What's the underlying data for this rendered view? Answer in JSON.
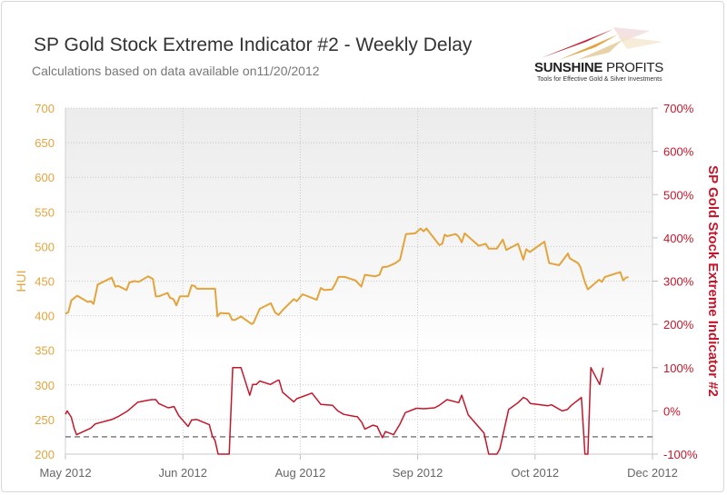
{
  "header": {
    "title": "SP Gold Stock Extreme Indicator #2 - Weekly Delay",
    "subtitle": "Calculations based on data available  on11/20/2012"
  },
  "logo": {
    "name_bold": "SUNSHINE",
    "name_regular": " PROFITS",
    "tagline": "Tools for Effective Gold & Silver Investments"
  },
  "colors": {
    "hui": "#e3a43c",
    "indicator": "#c4162a",
    "threshold": "#555555"
  },
  "chart_data": {
    "type": "line",
    "title": "SP Gold Stock Extreme Indicator #2 - Weekly Delay",
    "x_ticks": [
      {
        "x": 0,
        "label": "May 2012"
      },
      {
        "x": 20,
        "label": "Jun 2012"
      },
      {
        "x": 40,
        "label": "Aug 2012"
      },
      {
        "x": 60,
        "label": "Sep 2012"
      },
      {
        "x": 80,
        "label": "Oct 2012"
      },
      {
        "x": 100,
        "label": "Dec 2012"
      }
    ],
    "xlim": [
      0,
      100
    ],
    "y_left": {
      "label": "HUI",
      "lim": [
        200,
        700
      ],
      "ticks": [
        "200",
        "250",
        "300",
        "350",
        "400",
        "450",
        "500",
        "550",
        "600",
        "650",
        "700"
      ]
    },
    "y_right": {
      "label": "SP Gold Stock Extreme Indicator #2",
      "lim": [
        -100,
        700
      ],
      "ticks": [
        "-100%",
        "0%",
        "100%",
        "200%",
        "300%",
        "400%",
        "500%",
        "600%",
        "700%"
      ]
    },
    "grid": true,
    "threshold": {
      "value": -60,
      "axis": "right",
      "style": "dashed"
    },
    "series": [
      {
        "axis": "left",
        "color": "#e3a43c",
        "points": [
          [
            0,
            403
          ],
          [
            0.5,
            405
          ],
          [
            1,
            422
          ],
          [
            2,
            429
          ],
          [
            3.8,
            420
          ],
          [
            4.3,
            421
          ],
          [
            4.8,
            417
          ],
          [
            5.5,
            445
          ],
          [
            7.9,
            455
          ],
          [
            8.5,
            442
          ],
          [
            9,
            443
          ],
          [
            10.4,
            437
          ],
          [
            10.9,
            448
          ],
          [
            11.8,
            450
          ],
          [
            12.5,
            449
          ],
          [
            14.1,
            457
          ],
          [
            14.9,
            453
          ],
          [
            15.4,
            428
          ],
          [
            15.9,
            428
          ],
          [
            17.4,
            433
          ],
          [
            17.8,
            426
          ],
          [
            18.4,
            424
          ],
          [
            18.9,
            415
          ],
          [
            19.5,
            428
          ],
          [
            20.9,
            428
          ],
          [
            21.5,
            444
          ],
          [
            22,
            443
          ],
          [
            22.4,
            439
          ],
          [
            25.5,
            439
          ],
          [
            25.9,
            399
          ],
          [
            26.4,
            404
          ],
          [
            27.9,
            403
          ],
          [
            28.4,
            394
          ],
          [
            28.9,
            394
          ],
          [
            29.9,
            399
          ],
          [
            31.7,
            388
          ],
          [
            32,
            389
          ],
          [
            33.1,
            410
          ],
          [
            35,
            418
          ],
          [
            35.7,
            405
          ],
          [
            36.3,
            401
          ],
          [
            37,
            408
          ],
          [
            38.9,
            424
          ],
          [
            39.4,
            421
          ],
          [
            40.4,
            431
          ],
          [
            42.8,
            423
          ],
          [
            43.5,
            440
          ],
          [
            44.1,
            437
          ],
          [
            45.4,
            438
          ],
          [
            45.9,
            445
          ],
          [
            46.5,
            456
          ],
          [
            47.6,
            456
          ],
          [
            49.4,
            451
          ],
          [
            50.4,
            442
          ],
          [
            51,
            459
          ],
          [
            52.8,
            457
          ],
          [
            53.5,
            459
          ],
          [
            54,
            470
          ],
          [
            54.9,
            471
          ],
          [
            56.2,
            476
          ],
          [
            57,
            481
          ],
          [
            58,
            518
          ],
          [
            59.6,
            519
          ],
          [
            60.5,
            526
          ],
          [
            61,
            522
          ],
          [
            61.5,
            526
          ],
          [
            63.7,
            502
          ],
          [
            64.2,
            504
          ],
          [
            64.6,
            517
          ],
          [
            65,
            515
          ],
          [
            66.5,
            518
          ],
          [
            67,
            514
          ],
          [
            67.5,
            506
          ],
          [
            68,
            519
          ],
          [
            70.4,
            501
          ],
          [
            71.6,
            504
          ],
          [
            72.1,
            497
          ],
          [
            73.5,
            497
          ],
          [
            74.5,
            510
          ],
          [
            75.1,
            495
          ],
          [
            77.1,
            504
          ],
          [
            78,
            481
          ],
          [
            78.5,
            496
          ],
          [
            79.1,
            492
          ],
          [
            81.6,
            507
          ],
          [
            82.4,
            476
          ],
          [
            84.1,
            473
          ],
          [
            85.6,
            490
          ],
          [
            85.9,
            483
          ],
          [
            87.3,
            476
          ],
          [
            87.7,
            471
          ],
          [
            88.5,
            448
          ],
          [
            89,
            438
          ],
          [
            90.9,
            452
          ],
          [
            91.4,
            449
          ],
          [
            91.9,
            456
          ],
          [
            94.5,
            463
          ],
          [
            95,
            451
          ],
          [
            95.5,
            455
          ],
          [
            95.9,
            456
          ]
        ]
      },
      {
        "axis": "right",
        "color": "#c4162a",
        "points": [
          [
            0,
            -8
          ],
          [
            0.3,
            0
          ],
          [
            1,
            -15
          ],
          [
            1.5,
            -41
          ],
          [
            1.9,
            -55
          ],
          [
            4.3,
            -40
          ],
          [
            5.1,
            -30
          ],
          [
            7.9,
            -20
          ],
          [
            9,
            -13
          ],
          [
            10.5,
            -1
          ],
          [
            12.3,
            20
          ],
          [
            13.9,
            24
          ],
          [
            14.7,
            26
          ],
          [
            15.4,
            26
          ],
          [
            15.9,
            17
          ],
          [
            17.5,
            7
          ],
          [
            18.5,
            10
          ],
          [
            19.3,
            -11
          ],
          [
            20.9,
            -36
          ],
          [
            21.5,
            -21
          ],
          [
            22.4,
            -20
          ],
          [
            24.5,
            -32
          ],
          [
            25,
            -57
          ],
          [
            25.5,
            -69
          ],
          [
            26,
            -100
          ],
          [
            27.9,
            -100
          ],
          [
            28.5,
            100
          ],
          [
            29.9,
            100
          ],
          [
            31.4,
            36
          ],
          [
            31.9,
            61
          ],
          [
            32.5,
            61
          ],
          [
            33.1,
            69
          ],
          [
            34.9,
            61
          ],
          [
            36.2,
            71
          ],
          [
            36.4,
            71
          ],
          [
            37,
            43
          ],
          [
            38.9,
            21
          ],
          [
            39.4,
            28
          ],
          [
            42,
            41
          ],
          [
            43.5,
            15
          ],
          [
            45.5,
            13
          ],
          [
            46.4,
            0
          ],
          [
            47.4,
            -8
          ],
          [
            49.4,
            -13
          ],
          [
            49.7,
            -13
          ],
          [
            50.5,
            -27
          ],
          [
            51,
            -42
          ],
          [
            52.4,
            -33
          ],
          [
            53.1,
            -36
          ],
          [
            54,
            -62
          ],
          [
            54.5,
            -48
          ],
          [
            55.9,
            -55
          ],
          [
            57,
            -30
          ],
          [
            57.9,
            -4
          ],
          [
            59.8,
            6
          ],
          [
            61.1,
            5
          ],
          [
            62.9,
            7
          ],
          [
            63.7,
            13
          ],
          [
            65,
            26
          ],
          [
            67,
            19
          ],
          [
            67.5,
            36
          ],
          [
            68.6,
            -9
          ],
          [
            71.3,
            -51
          ],
          [
            72.1,
            -100
          ],
          [
            73.5,
            -100
          ],
          [
            74,
            -88
          ],
          [
            75.5,
            3
          ],
          [
            77.1,
            19
          ],
          [
            78,
            31
          ],
          [
            78.6,
            27
          ],
          [
            79.2,
            17
          ],
          [
            82.2,
            12
          ],
          [
            82.8,
            14
          ],
          [
            84.6,
            0
          ],
          [
            85.5,
            3
          ],
          [
            86.1,
            12
          ],
          [
            87.9,
            31
          ],
          [
            88.5,
            -100
          ],
          [
            89,
            -100
          ],
          [
            89.5,
            100
          ],
          [
            91,
            61
          ],
          [
            91.6,
            100
          ]
        ]
      }
    ]
  }
}
